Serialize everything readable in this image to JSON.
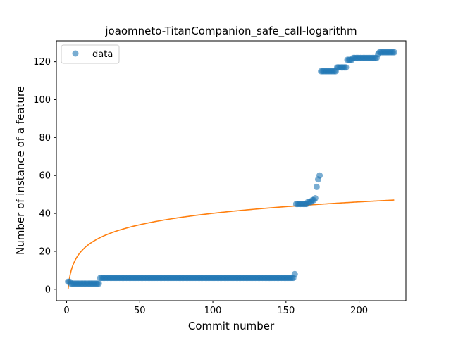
{
  "chart_data": {
    "type": "scatter",
    "title": "joaomneto-TitanCompanion_safe_call-logarithm",
    "xlabel": "Commit number",
    "ylabel": "Number of instance of a feature",
    "xlim": [
      -7,
      232
    ],
    "ylim": [
      -6,
      131
    ],
    "xticks": [
      0,
      50,
      100,
      150,
      200
    ],
    "yticks": [
      0,
      20,
      40,
      60,
      80,
      100,
      120
    ],
    "grid": false,
    "legend": {
      "placement": "top-left",
      "entries": [
        "data"
      ]
    },
    "colors": {
      "data": "#1f77b4",
      "fit": "#ff7f0e"
    },
    "series": [
      {
        "name": "data",
        "kind": "scatter",
        "runs": [
          {
            "x_start": 1,
            "x_end": 2,
            "y": 4
          },
          {
            "x_start": 3,
            "x_end": 22,
            "y": 3
          },
          {
            "x_start": 23,
            "x_end": 155,
            "y": 6
          },
          {
            "x_start": 156,
            "x_end": 156,
            "y": 8
          },
          {
            "x_start": 157,
            "x_end": 164,
            "y": 45
          },
          {
            "x_start": 165,
            "x_end": 167,
            "y": 46
          },
          {
            "x_start": 168,
            "x_end": 169,
            "y": 47
          },
          {
            "x_start": 170,
            "x_end": 170,
            "y": 48
          },
          {
            "x_start": 171,
            "x_end": 171,
            "y": 54
          },
          {
            "x_start": 172,
            "x_end": 172,
            "y": 58
          },
          {
            "x_start": 173,
            "x_end": 173,
            "y": 60
          },
          {
            "x_start": 174,
            "x_end": 184,
            "y": 115
          },
          {
            "x_start": 185,
            "x_end": 191,
            "y": 117
          },
          {
            "x_start": 192,
            "x_end": 195,
            "y": 121
          },
          {
            "x_start": 196,
            "x_end": 212,
            "y": 122
          },
          {
            "x_start": 213,
            "x_end": 213,
            "y": 124
          },
          {
            "x_start": 214,
            "x_end": 224,
            "y": 125
          }
        ]
      },
      {
        "kind": "line",
        "fit": {
          "model": "logarithm",
          "a": 8.7,
          "b": 0.0,
          "x_start": 1,
          "x_end": 224
        }
      }
    ]
  }
}
